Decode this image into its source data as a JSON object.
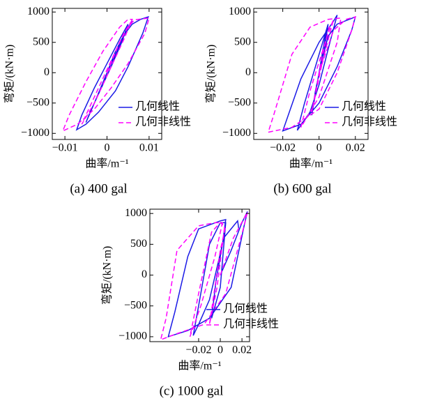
{
  "chart_data": [
    {
      "type": "line",
      "caption": "(a) 400 gal",
      "xlabel": "曲率/m⁻¹",
      "ylabel": "弯矩/(kN·m)",
      "xlim": [
        -0.013,
        0.013
      ],
      "ylim": [
        -1100,
        1060
      ],
      "xticks": [
        {
          "value": -0.01,
          "label": "−0.01"
        },
        0,
        0.01
      ],
      "yticks": [
        {
          "value": -1000,
          "label": "−1000"
        },
        {
          "value": -500,
          "label": "−500"
        },
        0,
        500,
        1000
      ],
      "legend": "lower right",
      "series": [
        {
          "name": "几何线性",
          "color": "#1a1ae6",
          "style": "solid",
          "x": [
            0,
            0.002,
            0.004,
            0.006,
            0.008,
            0.0098,
            0.0085,
            0.005,
            0.002,
            -0.002,
            -0.005,
            -0.0072,
            -0.006,
            -0.003,
            0,
            0.003,
            0.005,
            0.0035,
            0.001,
            -0.002,
            -0.004,
            -0.005,
            -0.003,
            0,
            0.003,
            0.005,
            0.006
          ],
          "values": [
            0,
            350,
            620,
            800,
            880,
            920,
            650,
            100,
            -300,
            -650,
            -850,
            -940,
            -700,
            -250,
            150,
            550,
            800,
            500,
            100,
            -350,
            -650,
            -820,
            -500,
            0,
            450,
            750,
            850
          ]
        },
        {
          "name": "几何非线性",
          "color": "#ff00ff",
          "style": "dashed",
          "x": [
            0,
            0.003,
            0.005,
            0.0065,
            0.01,
            0.009,
            0.005,
            0.001,
            -0.003,
            -0.007,
            -0.0105,
            -0.009,
            -0.005,
            -0.001,
            0.003,
            0.005,
            0.006,
            0.004,
            0,
            -0.003,
            -0.006,
            -0.004,
            0,
            0.004,
            0.006
          ],
          "values": [
            0,
            500,
            750,
            870,
            900,
            650,
            150,
            -250,
            -600,
            -850,
            -960,
            -700,
            -150,
            350,
            750,
            880,
            880,
            550,
            -50,
            -500,
            -850,
            -550,
            50,
            650,
            870
          ]
        }
      ]
    },
    {
      "type": "line",
      "caption": "(b) 600 gal",
      "xlabel": "曲率/m⁻¹",
      "ylabel": "弯矩/(kN·m)",
      "xlim": [
        -0.036,
        0.027
      ],
      "ylim": [
        -1100,
        1060
      ],
      "xticks": [
        {
          "value": -0.02,
          "label": "−0.02"
        },
        0,
        0.02
      ],
      "yticks": [
        {
          "value": -1000,
          "label": "−1000"
        },
        {
          "value": -500,
          "label": "−500"
        },
        0,
        500,
        1000
      ],
      "legend": "lower right",
      "series": [
        {
          "name": "几何线性",
          "color": "#1a1ae6",
          "style": "solid",
          "x": [
            0,
            0.005,
            0.01,
            0.02,
            0.018,
            0.01,
            0,
            -0.01,
            -0.02,
            -0.017,
            -0.01,
            0,
            0.008,
            0.01,
            0.006,
            0,
            -0.005,
            -0.012,
            -0.008,
            0,
            0.005,
            0.003,
            -0.002,
            -0.004,
            0,
            0.004
          ],
          "values": [
            0,
            600,
            800,
            920,
            700,
            100,
            -500,
            -850,
            -960,
            -700,
            -100,
            500,
            850,
            950,
            500,
            -200,
            -650,
            -950,
            -500,
            300,
            800,
            400,
            -300,
            -700,
            0,
            700
          ]
        },
        {
          "name": "几何非线性",
          "color": "#ff00ff",
          "style": "dashed",
          "x": [
            0,
            0.008,
            0.015,
            0.02,
            0.018,
            0.01,
            0,
            -0.015,
            -0.028,
            -0.025,
            -0.015,
            -0.005,
            0.005,
            0.012,
            0.01,
            0,
            -0.01,
            -0.005,
            0.005,
            0.008,
            0.002,
            -0.004,
            0.002,
            0.006
          ],
          "values": [
            0,
            700,
            880,
            920,
            700,
            0,
            -600,
            -900,
            -980,
            -700,
            300,
            750,
            880,
            900,
            500,
            -400,
            -900,
            -300,
            650,
            880,
            200,
            -650,
            300,
            800
          ]
        }
      ]
    },
    {
      "type": "line",
      "caption": "(c) 1000 gal",
      "xlabel": "曲率/m⁻¹",
      "ylabel": "弯矩/(kN·m)",
      "xlim": [
        -0.065,
        0.027
      ],
      "ylim": [
        -1080,
        1070
      ],
      "xticks": [
        {
          "value": -0.02,
          "label": "−0.02"
        },
        0,
        0.02
      ],
      "yticks": [
        {
          "value": -1000,
          "label": "−1000"
        },
        {
          "value": -500,
          "label": "−500"
        },
        0,
        500,
        1000
      ],
      "legend": "lower right",
      "series": [
        {
          "name": "几何线性",
          "color": "#1a1ae6",
          "style": "solid",
          "x": [
            0,
            0.01,
            0.02,
            0.025,
            0.022,
            0.01,
            -0.01,
            -0.03,
            -0.048,
            -0.042,
            -0.03,
            -0.02,
            0,
            0.005,
            0.002,
            -0.01,
            -0.02,
            -0.025,
            -0.02,
            -0.01,
            0,
            0.005,
            0,
            -0.008,
            -0.004,
            0.003,
            0.016,
            0.017
          ],
          "values": [
            0,
            400,
            850,
            1030,
            800,
            -200,
            -700,
            -900,
            -1000,
            -600,
            300,
            750,
            880,
            900,
            500,
            -400,
            -800,
            -980,
            -500,
            500,
            850,
            850,
            -200,
            -700,
            -100,
            600,
            880,
            750
          ]
        },
        {
          "name": "几何非线性",
          "color": "#ff00ff",
          "style": "dashed",
          "x": [
            0,
            0.012,
            0.025,
            0.022,
            0.005,
            -0.015,
            -0.04,
            -0.055,
            -0.05,
            -0.04,
            -0.02,
            -0.005,
            0.002,
            -0.005,
            -0.018,
            -0.028,
            -0.02,
            -0.008,
            0,
            0.004,
            -0.003,
            -0.01,
            0,
            0.005
          ],
          "values": [
            0,
            600,
            1020,
            800,
            -300,
            -800,
            -950,
            -1050,
            -700,
            400,
            800,
            850,
            850,
            300,
            -500,
            -1000,
            -300,
            700,
            850,
            800,
            -200,
            -800,
            400,
            800
          ]
        }
      ]
    }
  ]
}
